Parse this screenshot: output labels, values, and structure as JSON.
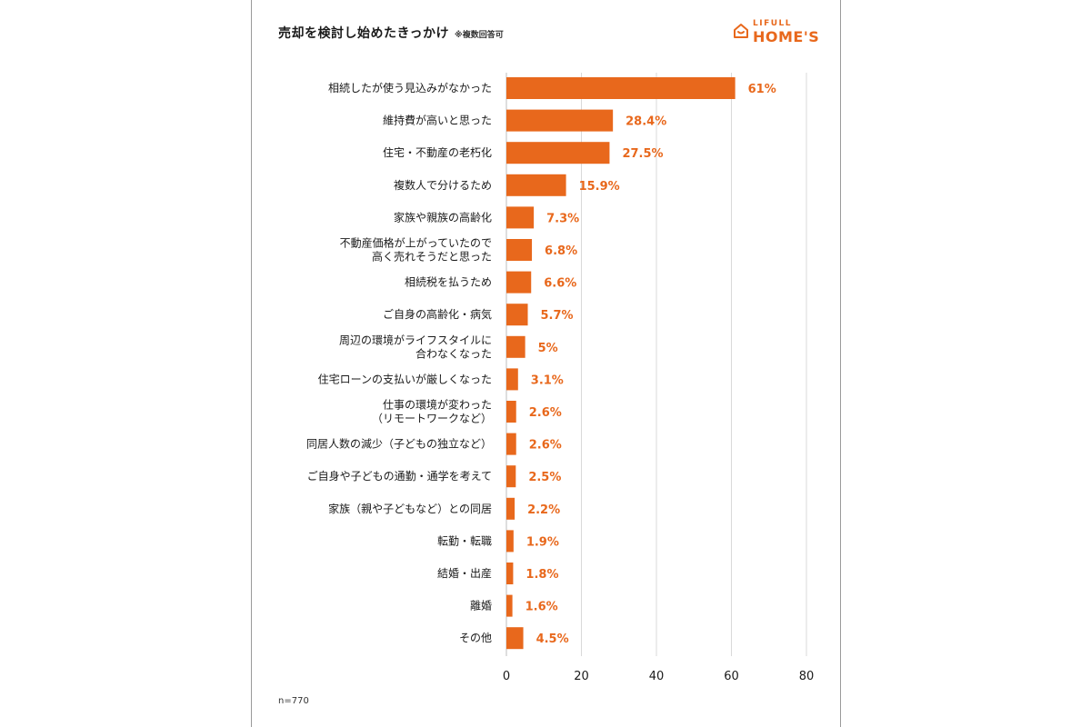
{
  "title": "売却を検討し始めたきっかけ",
  "note": "※複数回答可",
  "logo": {
    "top": "LIFULL",
    "main": "HOME'S"
  },
  "sample_size": "n=770",
  "colors": {
    "bar": "#e8681c",
    "grid": "#d9d9d9",
    "text": "#1a1a1a"
  },
  "chart_data": {
    "type": "bar",
    "orientation": "horizontal",
    "categories": [
      [
        "相続したが使う見込みがなかった"
      ],
      [
        "維持費が高いと思った"
      ],
      [
        "住宅・不動産の老朽化"
      ],
      [
        "複数人で分けるため"
      ],
      [
        "家族や親族の高齢化"
      ],
      [
        "不動産価格が上がっていたので",
        "高く売れそうだと思った"
      ],
      [
        "相続税を払うため"
      ],
      [
        "ご自身の高齢化・病気"
      ],
      [
        "周辺の環境がライフスタイルに",
        "合わなくなった"
      ],
      [
        "住宅ローンの支払いが厳しくなった"
      ],
      [
        "仕事の環境が変わった",
        "（リモートワークなど）"
      ],
      [
        "同居人数の減少（子どもの独立など）"
      ],
      [
        "ご自身や子どもの通勤・通学を考えて"
      ],
      [
        "家族（親や子どもなど）との同居"
      ],
      [
        "転勤・転職"
      ],
      [
        "結婚・出産"
      ],
      [
        "離婚"
      ],
      [
        "その他"
      ]
    ],
    "values": [
      61,
      28.4,
      27.5,
      15.9,
      7.3,
      6.8,
      6.6,
      5.7,
      5,
      3.1,
      2.6,
      2.6,
      2.5,
      2.2,
      1.9,
      1.8,
      1.6,
      4.5
    ],
    "value_labels": [
      "61%",
      "28.4%",
      "27.5%",
      "15.9%",
      "7.3%",
      "6.8%",
      "6.6%",
      "5.7%",
      "5%",
      "3.1%",
      "2.6%",
      "2.6%",
      "2.5%",
      "2.2%",
      "1.9%",
      "1.8%",
      "1.6%",
      "4.5%"
    ],
    "xlim": [
      0,
      80
    ],
    "xticks": [
      0,
      20,
      40,
      60,
      80
    ],
    "grid": true
  }
}
